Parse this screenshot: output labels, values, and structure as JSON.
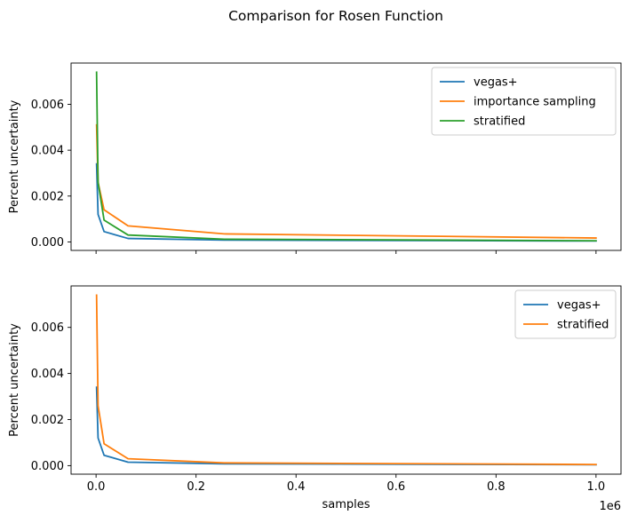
{
  "figure": {
    "title": "Comparison for Rosen Function"
  },
  "chart_data": [
    {
      "type": "line",
      "title": "",
      "xlabel": "",
      "ylabel": "Percent uncertainty",
      "x_offset_label": "",
      "xlim": [
        -0.05,
        1.05
      ],
      "ylim": [
        -0.00037,
        0.0078
      ],
      "x_ticks": [
        0.0,
        0.2,
        0.4,
        0.6,
        0.8,
        1.0
      ],
      "x_tick_labels": [
        "",
        "",
        "",
        "",
        "",
        ""
      ],
      "y_ticks": [
        0.0,
        0.002,
        0.004,
        0.006
      ],
      "y_tick_labels": [
        "0.000",
        "0.002",
        "0.004",
        "0.006"
      ],
      "grid": false,
      "legend_position": "upper-right",
      "x_units_note": "x in units of 1e6 samples",
      "series": [
        {
          "name": "vegas+",
          "color": "#1f77b4",
          "x": [
            0.001,
            0.004,
            0.016,
            0.064,
            0.256,
            1.0
          ],
          "y": [
            0.0034,
            0.0012,
            0.00045,
            0.00015,
            8e-05,
            4e-05
          ]
        },
        {
          "name": "importance sampling",
          "color": "#ff7f0e",
          "x": [
            0.001,
            0.004,
            0.016,
            0.064,
            0.256,
            1.0
          ],
          "y": [
            0.0051,
            0.0026,
            0.0014,
            0.0007,
            0.00035,
            0.00017
          ]
        },
        {
          "name": "stratified",
          "color": "#2ca02c",
          "x": [
            0.001,
            0.004,
            0.016,
            0.064,
            0.256,
            1.0
          ],
          "y": [
            0.0074,
            0.0026,
            0.00095,
            0.0003,
            0.00012,
            5e-05
          ]
        }
      ]
    },
    {
      "type": "line",
      "title": "",
      "xlabel": "samples",
      "ylabel": "Percent uncertainty",
      "x_offset_label": "1e6",
      "xlim": [
        -0.05,
        1.05
      ],
      "ylim": [
        -0.00037,
        0.0078
      ],
      "x_ticks": [
        0.0,
        0.2,
        0.4,
        0.6,
        0.8,
        1.0
      ],
      "x_tick_labels": [
        "0.0",
        "0.2",
        "0.4",
        "0.6",
        "0.8",
        "1.0"
      ],
      "y_ticks": [
        0.0,
        0.002,
        0.004,
        0.006
      ],
      "y_tick_labels": [
        "0.000",
        "0.002",
        "0.004",
        "0.006"
      ],
      "grid": false,
      "legend_position": "upper-right",
      "x_units_note": "x in units of 1e6 samples",
      "series": [
        {
          "name": "vegas+",
          "color": "#1f77b4",
          "x": [
            0.001,
            0.004,
            0.016,
            0.064,
            0.256,
            1.0
          ],
          "y": [
            0.0034,
            0.0012,
            0.00045,
            0.00015,
            8e-05,
            4e-05
          ]
        },
        {
          "name": "stratified",
          "color": "#ff7f0e",
          "x": [
            0.001,
            0.004,
            0.016,
            0.064,
            0.256,
            1.0
          ],
          "y": [
            0.0074,
            0.0026,
            0.00095,
            0.0003,
            0.00012,
            5e-05
          ]
        }
      ]
    }
  ]
}
